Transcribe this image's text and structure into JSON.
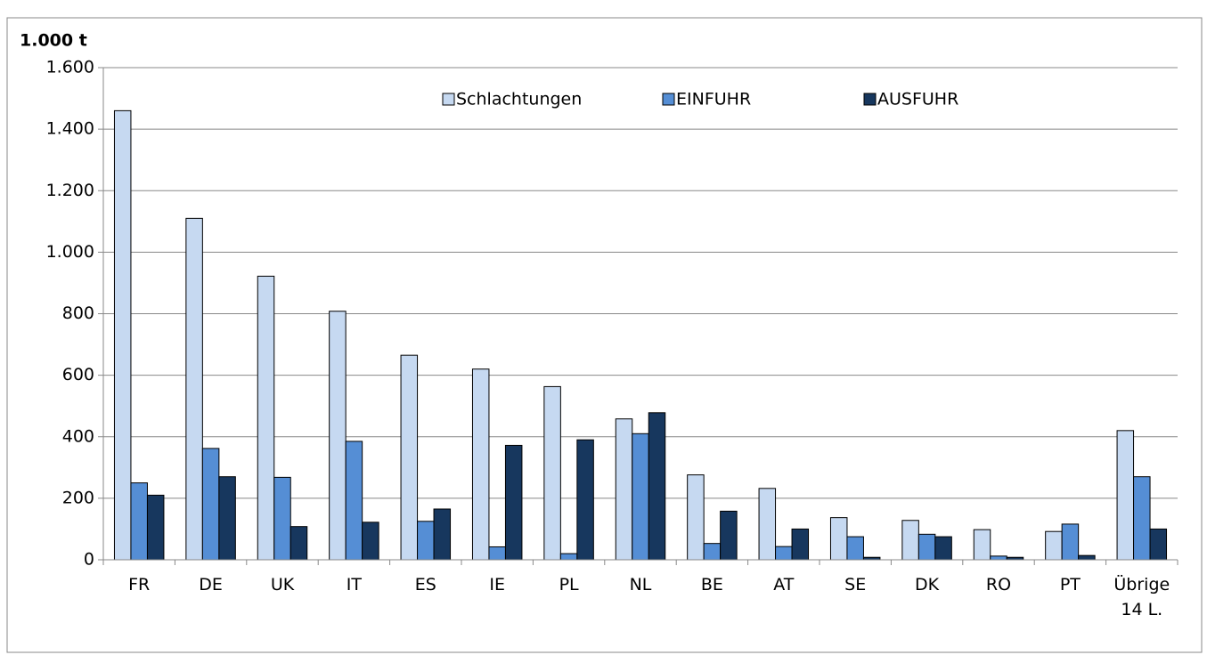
{
  "chart_data": {
    "type": "bar",
    "y_label": "1.000 t",
    "categories": [
      "FR",
      "DE",
      "UK",
      "IT",
      "ES",
      "IE",
      "PL",
      "NL",
      "BE",
      "AT",
      "SE",
      "DK",
      "RO",
      "PT",
      "Übrige 14 L."
    ],
    "series": [
      {
        "name": "Schlachtungen",
        "color": "#c6d9f1",
        "values": [
          1460,
          1110,
          922,
          808,
          665,
          620,
          563,
          458,
          276,
          232,
          137,
          128,
          98,
          92,
          420
        ]
      },
      {
        "name": "EINFUHR",
        "color": "#558ed5",
        "values": [
          250,
          362,
          268,
          385,
          125,
          42,
          20,
          410,
          53,
          43,
          75,
          83,
          12,
          116,
          270
        ]
      },
      {
        "name": "AUSFUHR",
        "color": "#17375e",
        "values": [
          210,
          270,
          108,
          122,
          165,
          372,
          390,
          478,
          158,
          100,
          8,
          75,
          8,
          14,
          100
        ]
      }
    ],
    "ylim": [
      0,
      1600
    ],
    "yticks": [
      0,
      200,
      400,
      600,
      800,
      {
        "value": 1000,
        "label": "1.000"
      },
      {
        "value": 1200,
        "label": "1.200"
      },
      {
        "value": 1400,
        "label": "1.400"
      },
      {
        "value": 1600,
        "label": "1.600"
      }
    ],
    "grid": true,
    "legend": "top"
  }
}
